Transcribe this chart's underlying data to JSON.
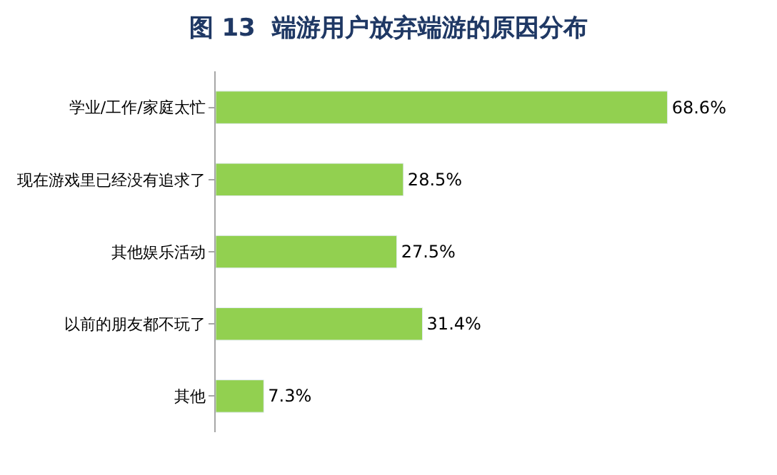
{
  "chart_data": {
    "type": "bar",
    "orientation": "horizontal",
    "title": "图 13  端游用户放弃端游的原因分布",
    "categories": [
      "学业/工作/家庭太忙",
      "现在游戏里已经没有追求了",
      "其他娱乐活动",
      "以前的朋友都不玩了",
      "其他"
    ],
    "values": [
      68.6,
      28.5,
      27.5,
      31.4,
      7.3
    ],
    "value_labels": [
      "68.6%",
      "28.5%",
      "27.5%",
      "31.4%",
      "7.3%"
    ],
    "color": "#92d050"
  }
}
